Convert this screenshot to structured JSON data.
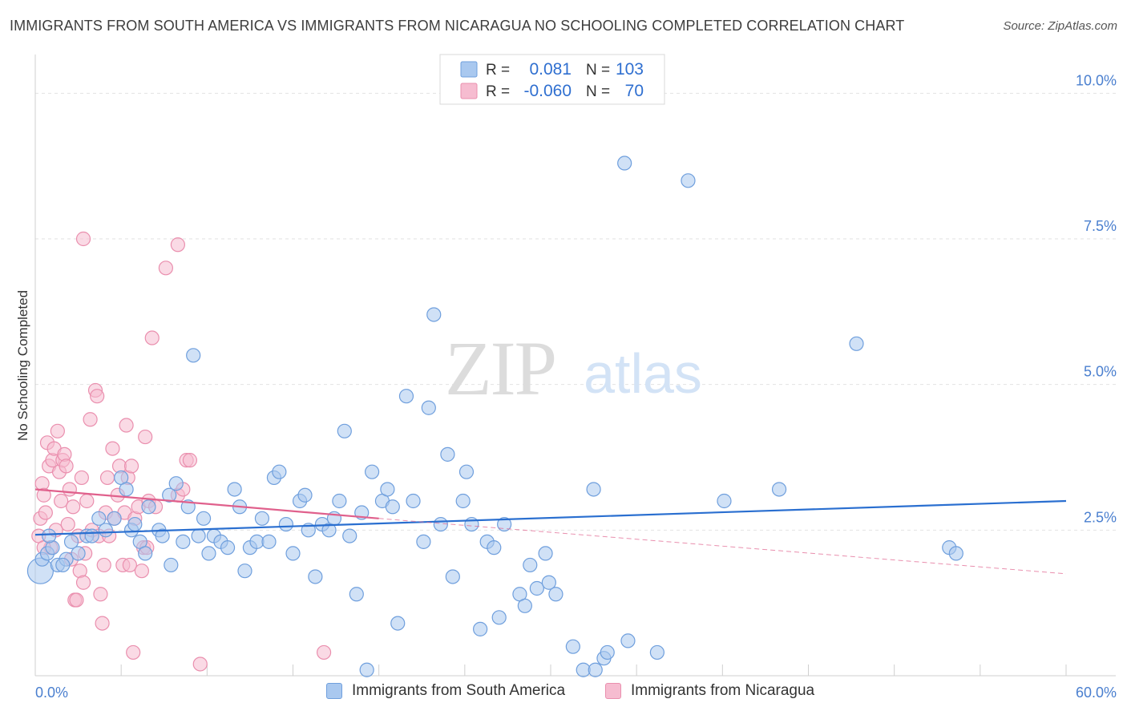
{
  "header": {
    "title": "IMMIGRANTS FROM SOUTH AMERICA VS IMMIGRANTS FROM NICARAGUA NO SCHOOLING COMPLETED CORRELATION CHART",
    "source": "Source: ZipAtlas.com"
  },
  "watermark": {
    "zip": "ZIP",
    "atlas": "atlas"
  },
  "colors": {
    "blue_fill": "#a9c8ef",
    "blue_stroke": "#6f9fdd",
    "blue_line": "#2a6fd0",
    "pink_fill": "#f6bcd0",
    "pink_stroke": "#ea8fae",
    "pink_line": "#e0608c",
    "tick_text": "#4a7fcf",
    "grid": "#e2e2e2"
  },
  "chart_data": {
    "type": "scatter",
    "title": "IMMIGRANTS FROM SOUTH AMERICA VS IMMIGRANTS FROM NICARAGUA NO SCHOOLING COMPLETED CORRELATION CHART",
    "xlabel": "",
    "ylabel": "No Schooling Completed",
    "xlim": [
      0,
      60
    ],
    "ylim": [
      0,
      10.5
    ],
    "x_tick_labels": [
      "0.0%",
      "60.0%"
    ],
    "y_ticks": [
      {
        "value": 2.5,
        "label": "2.5%"
      },
      {
        "value": 5.0,
        "label": "5.0%"
      },
      {
        "value": 7.5,
        "label": "7.5%"
      },
      {
        "value": 10.0,
        "label": "10.0%"
      }
    ],
    "grid": true,
    "legend_position": "top-center",
    "stats": [
      {
        "r_label": "R =",
        "r_value": "0.081",
        "n_label": "N =",
        "n_value": "103"
      },
      {
        "r_label": "R =",
        "r_value": "-0.060",
        "n_label": "N =",
        "n_value": "70"
      }
    ],
    "series": [
      {
        "name": "Immigrants from South America",
        "color": "#a9c8ef",
        "trend": {
          "x0": 0,
          "y0": 2.42,
          "x1": 60,
          "y1": 3.0
        },
        "points": [
          [
            0.3,
            1.8
          ],
          [
            0.4,
            2.0
          ],
          [
            0.7,
            2.1
          ],
          [
            1.0,
            2.2
          ],
          [
            1.3,
            1.9
          ],
          [
            1.8,
            2.0
          ],
          [
            2.1,
            2.3
          ],
          [
            2.5,
            2.1
          ],
          [
            3.0,
            2.4
          ],
          [
            3.3,
            2.4
          ],
          [
            3.7,
            2.7
          ],
          [
            4.1,
            2.5
          ],
          [
            4.6,
            2.7
          ],
          [
            5.0,
            3.4
          ],
          [
            5.3,
            3.2
          ],
          [
            5.6,
            2.5
          ],
          [
            5.8,
            2.6
          ],
          [
            6.1,
            2.3
          ],
          [
            6.4,
            2.1
          ],
          [
            6.6,
            2.9
          ],
          [
            7.2,
            2.5
          ],
          [
            7.4,
            2.4
          ],
          [
            7.8,
            3.1
          ],
          [
            7.9,
            1.9
          ],
          [
            8.2,
            3.3
          ],
          [
            8.6,
            2.3
          ],
          [
            8.9,
            2.9
          ],
          [
            9.2,
            5.5
          ],
          [
            9.5,
            2.4
          ],
          [
            9.8,
            2.7
          ],
          [
            10.1,
            2.1
          ],
          [
            10.4,
            2.4
          ],
          [
            10.8,
            2.3
          ],
          [
            11.2,
            2.2
          ],
          [
            11.6,
            3.2
          ],
          [
            11.9,
            2.9
          ],
          [
            12.2,
            1.8
          ],
          [
            12.5,
            2.2
          ],
          [
            12.9,
            2.3
          ],
          [
            13.2,
            2.7
          ],
          [
            13.6,
            2.3
          ],
          [
            13.9,
            3.4
          ],
          [
            14.2,
            3.5
          ],
          [
            14.6,
            2.6
          ],
          [
            15.0,
            2.1
          ],
          [
            15.4,
            3.0
          ],
          [
            15.7,
            3.1
          ],
          [
            15.9,
            2.5
          ],
          [
            16.3,
            1.7
          ],
          [
            16.7,
            2.6
          ],
          [
            17.1,
            2.5
          ],
          [
            17.4,
            2.7
          ],
          [
            17.7,
            3.0
          ],
          [
            18.0,
            4.2
          ],
          [
            18.3,
            2.4
          ],
          [
            18.7,
            1.4
          ],
          [
            19.0,
            2.8
          ],
          [
            19.3,
            0.1
          ],
          [
            19.6,
            3.5
          ],
          [
            20.2,
            3.0
          ],
          [
            20.5,
            3.2
          ],
          [
            20.8,
            2.9
          ],
          [
            21.1,
            0.9
          ],
          [
            21.6,
            4.8
          ],
          [
            22.0,
            3.0
          ],
          [
            22.6,
            2.3
          ],
          [
            22.9,
            4.6
          ],
          [
            23.2,
            6.2
          ],
          [
            23.6,
            2.6
          ],
          [
            24.0,
            3.8
          ],
          [
            24.3,
            1.7
          ],
          [
            24.9,
            3.0
          ],
          [
            25.1,
            3.5
          ],
          [
            25.4,
            2.6
          ],
          [
            25.9,
            0.8
          ],
          [
            26.3,
            2.3
          ],
          [
            26.7,
            2.2
          ],
          [
            27.0,
            1.0
          ],
          [
            27.3,
            2.6
          ],
          [
            28.2,
            1.4
          ],
          [
            28.5,
            1.2
          ],
          [
            28.8,
            1.9
          ],
          [
            29.2,
            1.5
          ],
          [
            29.7,
            2.1
          ],
          [
            29.9,
            1.6
          ],
          [
            30.3,
            1.4
          ],
          [
            31.3,
            0.5
          ],
          [
            31.9,
            0.1
          ],
          [
            32.6,
            0.1
          ],
          [
            33.1,
            0.3
          ],
          [
            33.3,
            0.4
          ],
          [
            34.5,
            0.6
          ],
          [
            36.2,
            0.4
          ],
          [
            32.5,
            3.2
          ],
          [
            34.3,
            8.8
          ],
          [
            38.0,
            8.5
          ],
          [
            40.1,
            3.0
          ],
          [
            43.3,
            3.2
          ],
          [
            47.8,
            5.7
          ],
          [
            53.2,
            2.2
          ],
          [
            53.6,
            2.1
          ],
          [
            0.8,
            2.4
          ],
          [
            1.6,
            1.9
          ]
        ]
      },
      {
        "name": "Immigrants from Nicaragua",
        "color": "#f6bcd0",
        "trend": {
          "x0": 0,
          "y0": 3.2,
          "x1": 20,
          "y1": 2.7
        },
        "trend_extension": {
          "x0": 20,
          "y0": 2.7,
          "x1": 60,
          "y1": 1.75
        },
        "points": [
          [
            0.2,
            2.4
          ],
          [
            0.3,
            2.7
          ],
          [
            0.4,
            3.3
          ],
          [
            0.5,
            3.1
          ],
          [
            0.6,
            2.8
          ],
          [
            0.7,
            4.0
          ],
          [
            0.8,
            3.6
          ],
          [
            0.9,
            2.2
          ],
          [
            1.0,
            3.7
          ],
          [
            1.1,
            3.9
          ],
          [
            1.2,
            2.5
          ],
          [
            1.3,
            4.2
          ],
          [
            1.4,
            3.5
          ],
          [
            1.5,
            3.0
          ],
          [
            1.6,
            3.7
          ],
          [
            1.7,
            3.8
          ],
          [
            1.8,
            3.6
          ],
          [
            1.9,
            2.6
          ],
          [
            2.0,
            3.2
          ],
          [
            2.1,
            2.0
          ],
          [
            2.2,
            2.9
          ],
          [
            2.3,
            1.3
          ],
          [
            2.4,
            1.3
          ],
          [
            2.5,
            2.4
          ],
          [
            2.6,
            1.8
          ],
          [
            2.7,
            3.4
          ],
          [
            2.8,
            1.6
          ],
          [
            2.9,
            2.1
          ],
          [
            3.0,
            3.0
          ],
          [
            3.2,
            4.4
          ],
          [
            3.3,
            2.5
          ],
          [
            3.5,
            4.9
          ],
          [
            3.6,
            4.8
          ],
          [
            3.7,
            2.4
          ],
          [
            3.8,
            1.4
          ],
          [
            3.9,
            0.9
          ],
          [
            4.0,
            1.9
          ],
          [
            4.1,
            2.8
          ],
          [
            4.2,
            3.4
          ],
          [
            4.3,
            2.4
          ],
          [
            4.5,
            3.9
          ],
          [
            4.6,
            2.7
          ],
          [
            4.8,
            3.1
          ],
          [
            4.9,
            3.6
          ],
          [
            5.1,
            1.9
          ],
          [
            5.2,
            2.8
          ],
          [
            5.3,
            4.3
          ],
          [
            5.4,
            3.4
          ],
          [
            5.5,
            1.9
          ],
          [
            5.6,
            3.6
          ],
          [
            5.7,
            0.4
          ],
          [
            5.8,
            2.7
          ],
          [
            6.0,
            2.9
          ],
          [
            6.2,
            1.8
          ],
          [
            6.3,
            2.2
          ],
          [
            6.4,
            4.1
          ],
          [
            6.5,
            2.2
          ],
          [
            6.6,
            3.0
          ],
          [
            6.8,
            5.8
          ],
          [
            7.0,
            2.9
          ],
          [
            7.6,
            7.0
          ],
          [
            8.3,
            3.1
          ],
          [
            8.6,
            3.2
          ],
          [
            8.8,
            3.7
          ],
          [
            9.0,
            3.7
          ],
          [
            8.3,
            7.4
          ],
          [
            9.6,
            0.2
          ],
          [
            16.8,
            0.4
          ],
          [
            2.8,
            7.5
          ],
          [
            0.5,
            2.2
          ]
        ]
      }
    ]
  },
  "legend_bottom": {
    "items": [
      {
        "label": "Immigrants from South America"
      },
      {
        "label": "Immigrants from Nicaragua"
      }
    ]
  }
}
